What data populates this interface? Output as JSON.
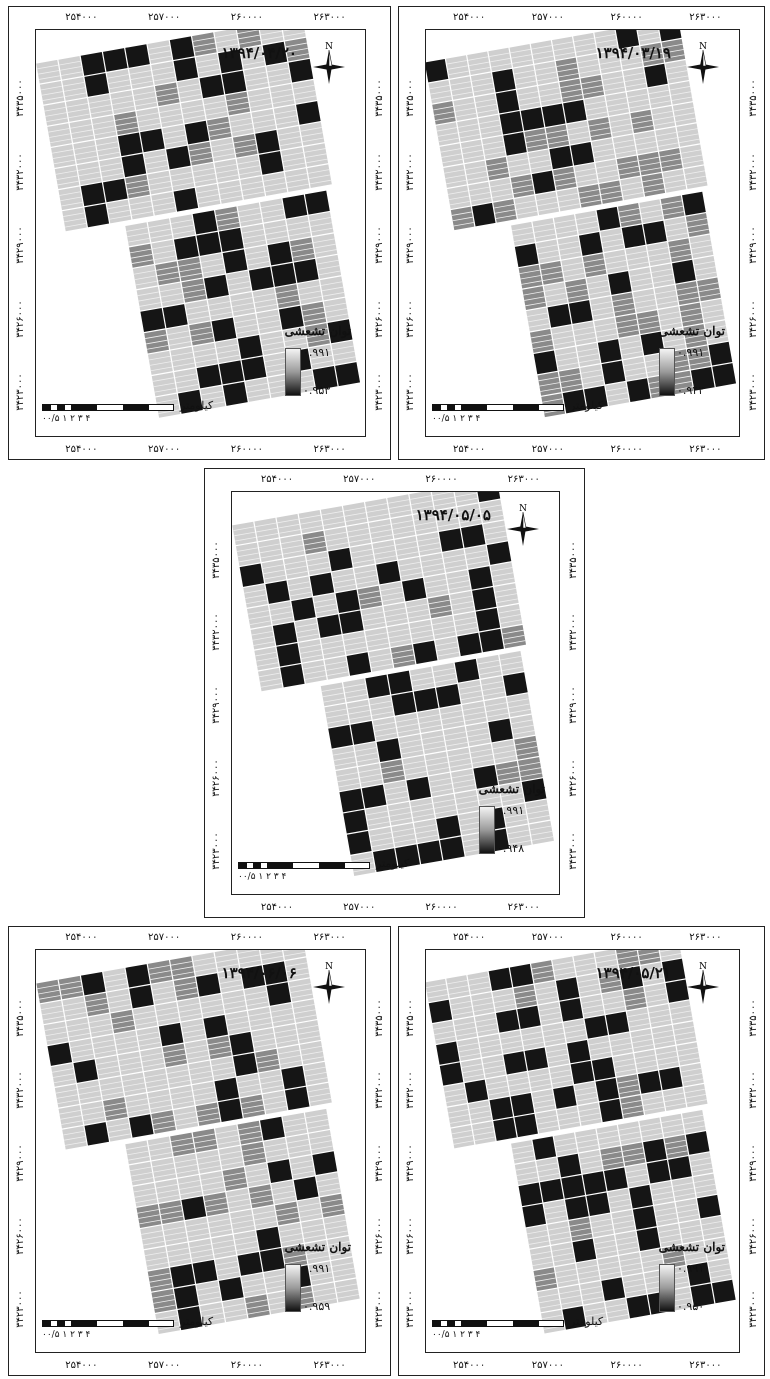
{
  "legend_title": "توان تشعشی",
  "scale_unit": "کیلومتر",
  "scale_labels": "۰۰/۵ ۱   ۲   ۳   ۴",
  "x_ticks": [
    "۲۵۴۰۰۰",
    "۲۵۷۰۰۰",
    "۲۶۰۰۰۰",
    "۲۶۳۰۰۰"
  ],
  "y_ticks": [
    "۳۴۳۵۰۰۰",
    "۳۴۳۲۰۰۰",
    "۳۴۲۹۰۰۰",
    "۳۴۲۶۰۰۰",
    "۳۴۲۳۰۰۰"
  ],
  "north_label": "N",
  "panels": [
    {
      "date": "۱۳۹۴/۰۴/۲۰",
      "max": "۰.۹۹۱",
      "min": "۰.۹۵۳"
    },
    {
      "date": "۱۳۹۴/۰۳/۱۹",
      "max": "۰.۹۹۱",
      "min": "۰.۹۴۲"
    },
    {
      "date": "۱۳۹۴/۰۵/۰۵",
      "max": "۰.۹۹۱",
      "min": "۰.۹۴۸"
    },
    {
      "date": "۱۳۹۴/۰۶/۰۶",
      "max": "۰.۹۹۱",
      "min": "۰.۹۵۹"
    },
    {
      "date": "۱۳۹۴/۰۵/۲۱",
      "max": "۰.۹۹۱",
      "min": "۰.۹۵۰"
    }
  ],
  "colors": {
    "dark": "#151515",
    "mid": "#8a8a8a",
    "light": "#cfcfcf",
    "stripe": "#eeeeee"
  }
}
